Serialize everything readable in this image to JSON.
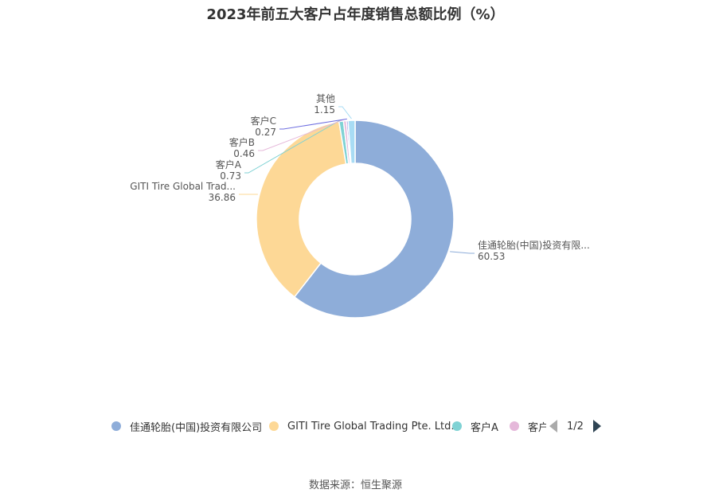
{
  "title": "2023年前五大客户占年度销售总额比例（%）",
  "source": "数据来源：恒生聚源",
  "chart_data": {
    "type": "pie",
    "style": "donut",
    "slices": [
      {
        "name": "佳通轮胎(中国)投资有限公司",
        "short_label": "佳通轮胎(中国)投资有限...",
        "value": 60.53,
        "value_label": "60.53",
        "color": "#8eadd9"
      },
      {
        "name": "GITI Tire Global Trading Pte. Ltd.",
        "short_label": "GITI Tire Global Trad...",
        "value": 36.86,
        "value_label": "36.86",
        "color": "#fdd896"
      },
      {
        "name": "客户A",
        "short_label": "客户A",
        "value": 0.73,
        "value_label": "0.73",
        "color": "#7fd2d4"
      },
      {
        "name": "客户B",
        "short_label": "客户B",
        "value": 0.46,
        "value_label": "0.46",
        "color": "#e5b8da"
      },
      {
        "name": "客户C",
        "short_label": "客户C",
        "value": 0.27,
        "value_label": "0.27",
        "color": "#6e6ee0"
      },
      {
        "name": "其他",
        "short_label": "其他",
        "value": 1.15,
        "value_label": "1.15",
        "color": "#a8dcf4"
      }
    ]
  },
  "legend": {
    "items": [
      {
        "label": "佳通轮胎(中国)投资有限公司",
        "color": "#8eadd9"
      },
      {
        "label": "GITI Tire Global Trading Pte. Ltd.",
        "color": "#fdd896"
      },
      {
        "label": "客户A",
        "color": "#7fd2d4"
      },
      {
        "label": "客户B",
        "color": "#e5b8da"
      }
    ],
    "page": "1/2"
  }
}
